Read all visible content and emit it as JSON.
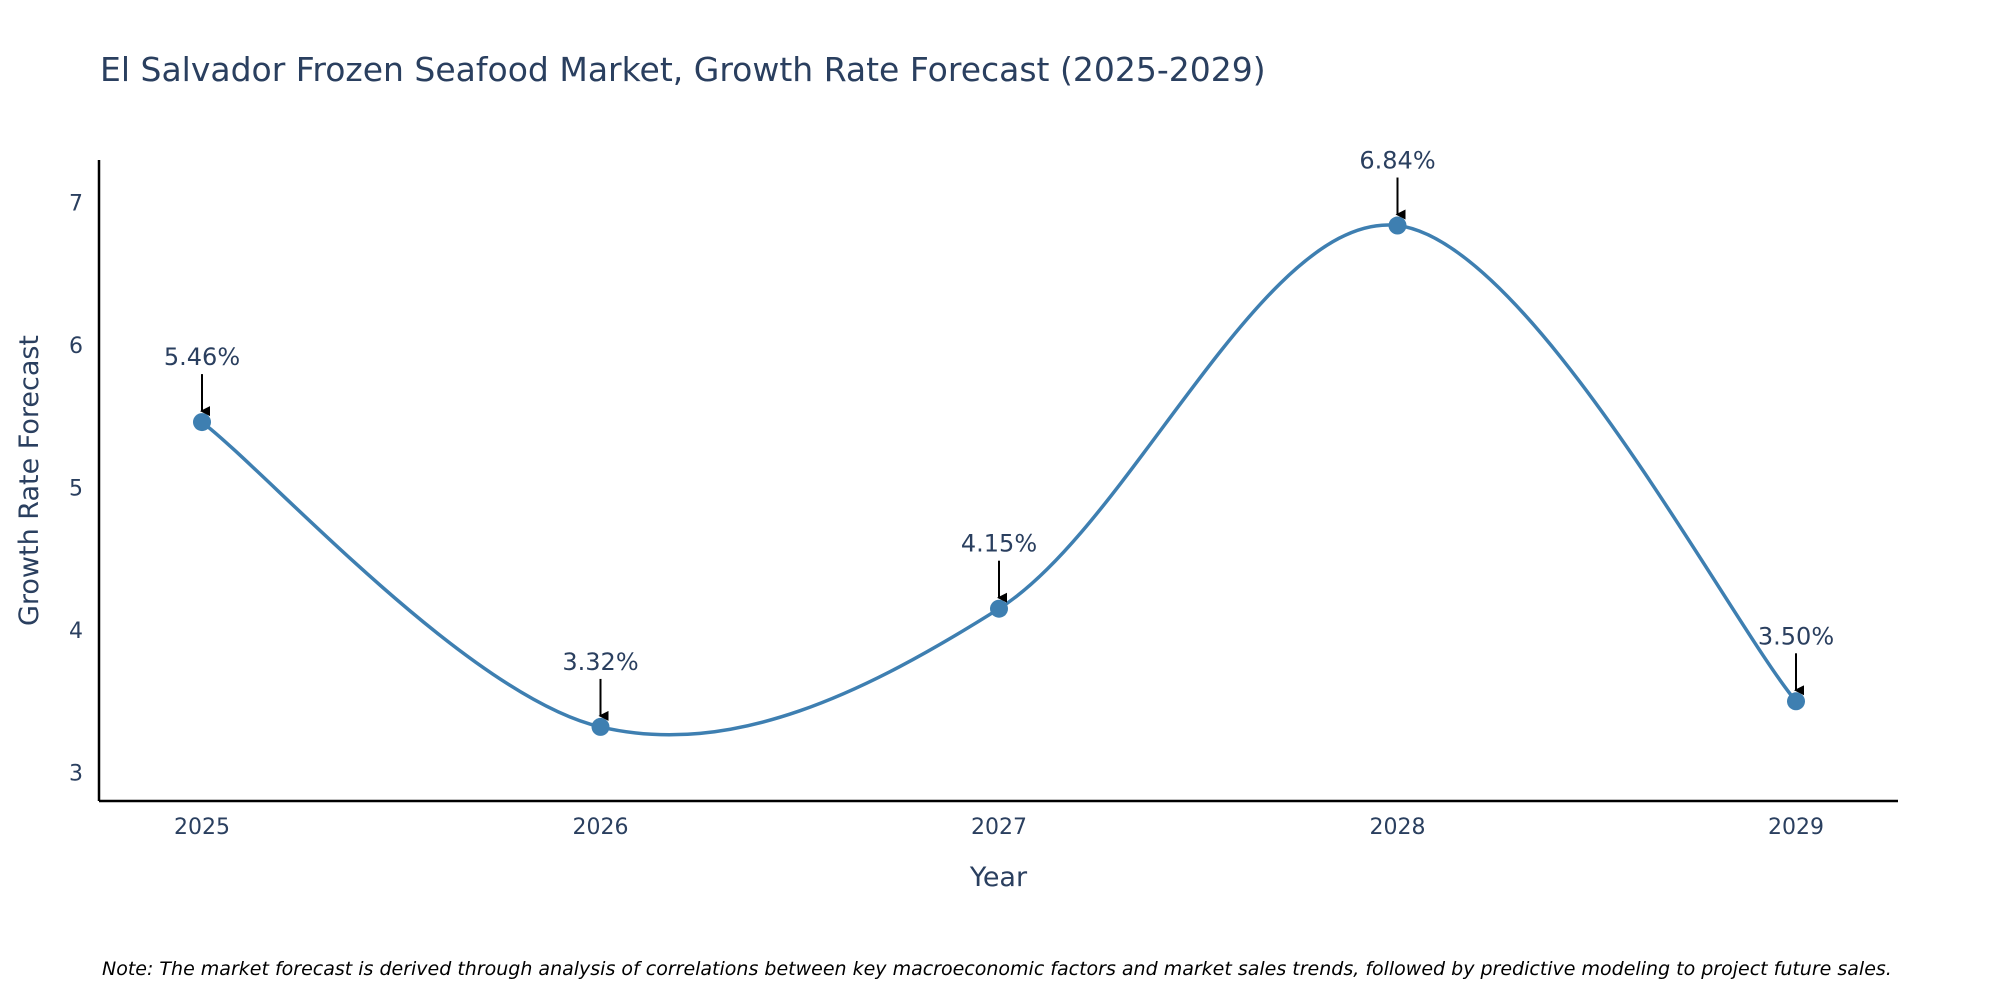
{
  "chart_data": {
    "type": "line",
    "title": "El Salvador Frozen Seafood Market, Growth Rate Forecast (2025-2029)",
    "xlabel": "Year",
    "ylabel": "Growth Rate Forecast",
    "x": [
      "2025",
      "2026",
      "2027",
      "2028",
      "2029"
    ],
    "values": [
      5.46,
      3.32,
      4.15,
      6.84,
      3.5
    ],
    "data_labels": [
      "5.46%",
      "3.32%",
      "4.15%",
      "6.84%",
      "3.50%"
    ],
    "yticks": [
      "3",
      "4",
      "5",
      "6",
      "7"
    ],
    "ylim": [
      2.8,
      7.3
    ],
    "grid": false,
    "line_shape": "spline",
    "note": "Note: The market forecast is derived through analysis of correlations between key macroeconomic factors and market sales trends, followed by predictive modeling to project future sales.",
    "colors": {
      "line": "#3e7fb1",
      "marker": "#3e7fb1",
      "text": "#2a3f5f",
      "axis": "#000000",
      "arrow": "#000000"
    }
  }
}
